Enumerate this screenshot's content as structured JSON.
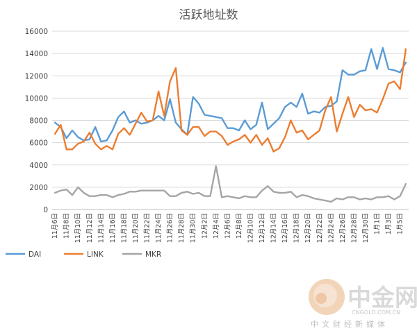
{
  "chart_data": {
    "type": "line",
    "title": "活跃地址数",
    "ylim": [
      0,
      16000
    ],
    "yticks": [
      0,
      2000,
      4000,
      6000,
      8000,
      10000,
      12000,
      14000,
      16000
    ],
    "grid": true,
    "legend_position": "bottom-left",
    "x_label_every": 2,
    "categories": [
      "11月6日",
      "11月7日",
      "11月8日",
      "11月9日",
      "11月10日",
      "11月11日",
      "11月12日",
      "11月13日",
      "11月14日",
      "11月15日",
      "11月16日",
      "11月17日",
      "11月18日",
      "11月19日",
      "11月20日",
      "11月21日",
      "11月22日",
      "11月23日",
      "11月24日",
      "11月25日",
      "11月26日",
      "11月27日",
      "11月28日",
      "11月29日",
      "11月30日",
      "12月1日",
      "12月2日",
      "12月3日",
      "12月4日",
      "12月5日",
      "12月6日",
      "12月7日",
      "12月8日",
      "12月9日",
      "12月10日",
      "12月11日",
      "12月12日",
      "12月13日",
      "12月14日",
      "12月15日",
      "12月16日",
      "12月17日",
      "12月18日",
      "12月19日",
      "12月20日",
      "12月21日",
      "12月22日",
      "12月23日",
      "12月24日",
      "12月25日",
      "12月26日",
      "12月27日",
      "12月28日",
      "12月29日",
      "12月30日",
      "12月31日",
      "1月1日",
      "1月2日",
      "1月3日",
      "1月4日",
      "1月5日",
      "1月6日"
    ],
    "series": [
      {
        "name": "DAI",
        "color": "#5b9bd5",
        "values": [
          7800,
          7400,
          6400,
          7100,
          6500,
          6200,
          6300,
          7400,
          6100,
          6200,
          7100,
          8300,
          8800,
          7800,
          8000,
          7700,
          7800,
          8000,
          8400,
          8000,
          9900,
          7800,
          7200,
          6700,
          10100,
          9500,
          8500,
          8400,
          8300,
          8200,
          7300,
          7300,
          7100,
          8000,
          7200,
          7600,
          9600,
          7200,
          7700,
          8200,
          9200,
          9600,
          9200,
          10400,
          8600,
          8800,
          8700,
          9200,
          9300,
          9700,
          12500,
          12100,
          12100,
          12400,
          12500,
          14400,
          12600,
          14500,
          12600,
          12500,
          12300,
          13200
        ]
      },
      {
        "name": "LINK",
        "color": "#ed7d31",
        "values": [
          6800,
          7600,
          5400,
          5400,
          5900,
          6100,
          6900,
          5900,
          5400,
          5700,
          5400,
          6800,
          7300,
          6700,
          7700,
          8700,
          7900,
          8000,
          10600,
          8400,
          11500,
          12700,
          7100,
          6700,
          7400,
          7400,
          6600,
          7000,
          7000,
          6600,
          5800,
          6100,
          6300,
          6700,
          6000,
          6700,
          5800,
          6400,
          5200,
          5500,
          6500,
          8000,
          6900,
          7100,
          6300,
          6700,
          7100,
          8900,
          10100,
          7000,
          8600,
          10100,
          8300,
          9400,
          8900,
          9000,
          8700,
          9900,
          11300,
          11500,
          10800,
          14400
        ]
      },
      {
        "name": "MKR",
        "color": "#a5a5a5",
        "values": [
          1500,
          1700,
          1800,
          1300,
          2000,
          1500,
          1200,
          1200,
          1300,
          1300,
          1100,
          1300,
          1400,
          1600,
          1600,
          1700,
          1700,
          1700,
          1700,
          1700,
          1200,
          1200,
          1500,
          1600,
          1400,
          1500,
          1200,
          1200,
          3900,
          1100,
          1200,
          1100,
          1000,
          1200,
          1100,
          1100,
          1700,
          2100,
          1600,
          1500,
          1500,
          1600,
          1100,
          1300,
          1200,
          1000,
          900,
          800,
          700,
          1000,
          900,
          1100,
          1100,
          900,
          1000,
          900,
          1100,
          1100,
          1200,
          900,
          1200,
          2300
        ]
      }
    ]
  },
  "watermark": {
    "brand": "中金网",
    "url": "CNGOLD.COM.CN",
    "tagline": "中文财经新媒体"
  }
}
